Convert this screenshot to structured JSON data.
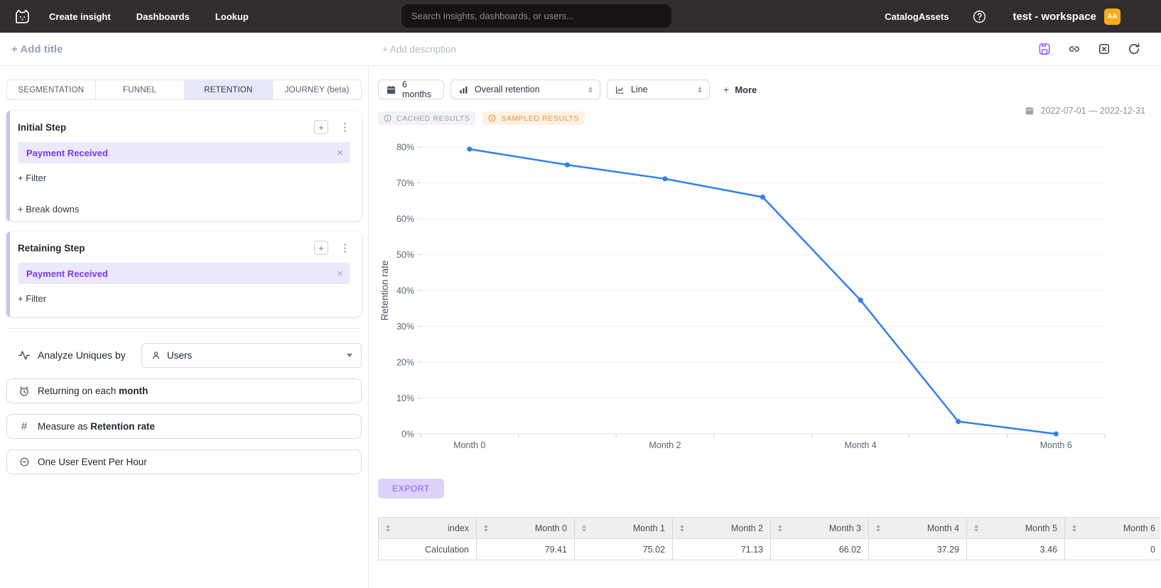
{
  "nav": {
    "links": [
      {
        "label": "Create insight"
      },
      {
        "label": "Dashboards"
      },
      {
        "label": "Lookup"
      }
    ],
    "search_placeholder": "Search insights, dashboards, or users...",
    "right_links": [
      {
        "label": "Catalog"
      },
      {
        "label": "Assets"
      }
    ],
    "workspace": "test - workspace",
    "avatar_initials": "AA"
  },
  "header": {
    "add_title": "+ Add title",
    "add_description": "+ Add description"
  },
  "tabs": [
    {
      "label": "SEGMENTATION",
      "active": false
    },
    {
      "label": "FUNNEL",
      "active": false
    },
    {
      "label": "RETENTION",
      "active": true
    },
    {
      "label": "JOURNEY (beta)",
      "active": false
    }
  ],
  "steps": [
    {
      "title": "Initial Step",
      "event": "Payment Received",
      "filter": "+ Filter",
      "breakdowns": "+ Break downs"
    },
    {
      "title": "Retaining Step",
      "event": "Payment Received",
      "filter": "+ Filter"
    }
  ],
  "analyze": {
    "label": "Analyze Uniques by",
    "value": "Users"
  },
  "options": [
    {
      "text": "Returning on each ",
      "bold": "month"
    },
    {
      "text": "Measure as ",
      "bold": "Retention rate"
    },
    {
      "text": "One User Event Per Hour",
      "bold": ""
    }
  ],
  "controls": {
    "range": "6 months",
    "metric": "Overall retention",
    "chart_type": "Line",
    "more_plus": "+",
    "more": "More"
  },
  "badges": {
    "cached": "CACHED RESULTS",
    "sampled": "SAMPLED RESULTS"
  },
  "date_range": "2022-07-01 — 2022-12-31",
  "export_label": "EXPORT",
  "chart_data": {
    "type": "line",
    "categories": [
      "Month 0",
      "Month 1",
      "Month 2",
      "Month 3",
      "Month 4",
      "Month 5",
      "Month 6"
    ],
    "values": [
      79.41,
      75.02,
      71.13,
      66.02,
      37.29,
      3.46,
      0
    ],
    "title": "",
    "xlabel": "",
    "ylabel": "Retention rate",
    "ylim": [
      0,
      80
    ],
    "ytick_step": 10,
    "ytick_suffix": "%",
    "x_label_every": 2,
    "grid": true,
    "legend": "none",
    "line_color": "#2f80ed"
  },
  "table": {
    "columns": [
      "index",
      "Month 0",
      "Month 1",
      "Month 2",
      "Month 3",
      "Month 4",
      "Month 5",
      "Month 6"
    ],
    "rows": [
      [
        "Calculation",
        "79.41",
        "75.02",
        "71.13",
        "66.02",
        "37.29",
        "3.46",
        "0"
      ]
    ]
  },
  "colors": {
    "accent_purple": "#7c3aed",
    "chip_bg": "#ece9fc",
    "line_blue": "#2f80ed",
    "avatar_orange": "#fbab18",
    "sampled_orange": "#ef9234",
    "save_purple": "#8b5cf6",
    "export_bg": "#ddd2fb"
  }
}
